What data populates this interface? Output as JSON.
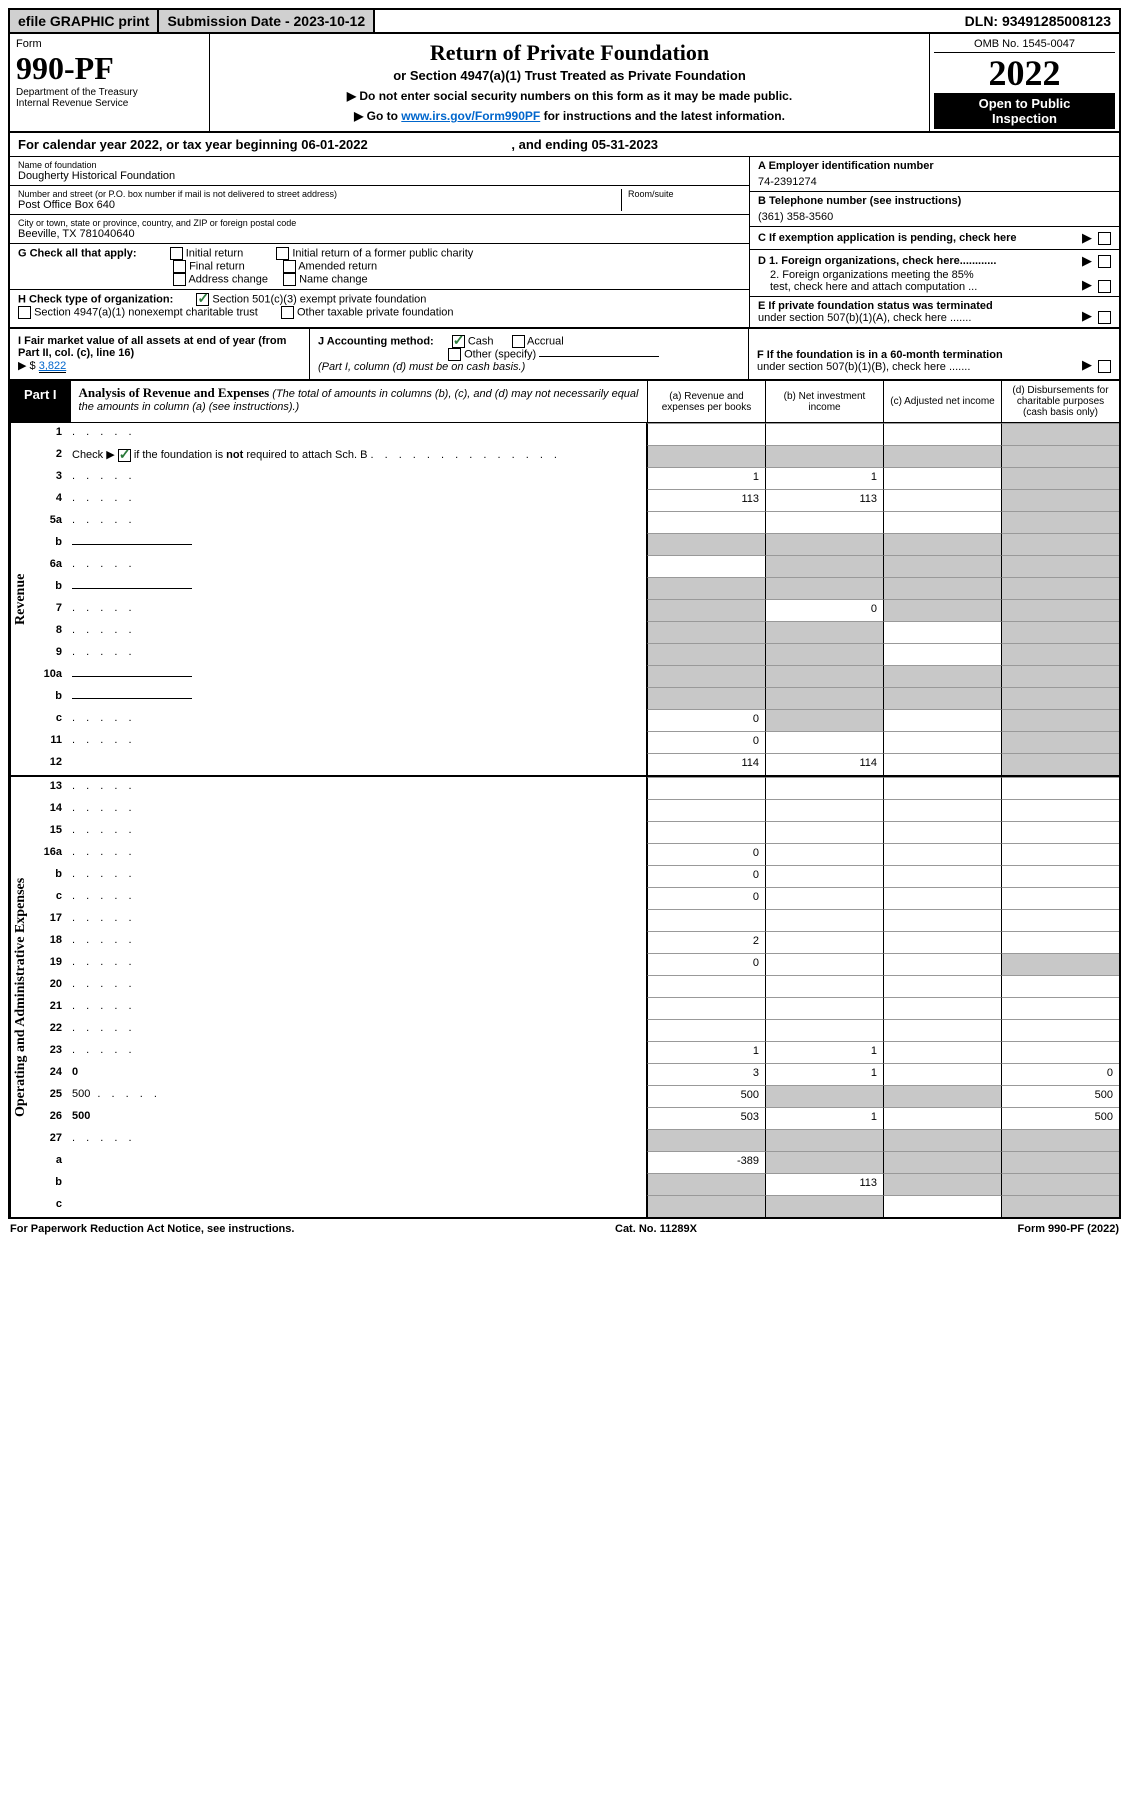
{
  "topbar": {
    "efile": "efile GRAPHIC print",
    "subdate_label": "Submission Date - ",
    "subdate": "2023-10-12",
    "dln_label": "DLN: ",
    "dln": "93491285008123"
  },
  "header": {
    "form_word": "Form",
    "form_no": "990-PF",
    "dept1": "Department of the Treasury",
    "dept2": "Internal Revenue Service",
    "title": "Return of Private Foundation",
    "subtitle": "or Section 4947(a)(1) Trust Treated as Private Foundation",
    "inst1": "▶ Do not enter social security numbers on this form as it may be made public.",
    "inst2_pre": "▶ Go to ",
    "inst2_link": "www.irs.gov/Form990PF",
    "inst2_post": " for instructions and the latest information.",
    "omb": "OMB No. 1545-0047",
    "year": "2022",
    "open1": "Open to Public",
    "open2": "Inspection"
  },
  "taxyear": {
    "text_a": "For calendar year 2022, or tax year beginning ",
    "begin": "06-01-2022",
    "text_b": " , and ending ",
    "end": "05-31-2023"
  },
  "info": {
    "name_lbl": "Name of foundation",
    "name": "Dougherty Historical Foundation",
    "addr_lbl": "Number and street (or P.O. box number if mail is not delivered to street address)",
    "addr": "Post Office Box 640",
    "room_lbl": "Room/suite",
    "city_lbl": "City or town, state or province, country, and ZIP or foreign postal code",
    "city": "Beeville, TX  781040640",
    "a_lbl": "A Employer identification number",
    "a_val": "74-2391274",
    "b_lbl": "B Telephone number (see instructions)",
    "b_val": "(361) 358-3560",
    "c_lbl": "C If exemption application is pending, check here",
    "d1": "D 1. Foreign organizations, check here............",
    "d2a": "2. Foreign organizations meeting the 85%",
    "d2b": "test, check here and attach computation ...",
    "e1": "E If private foundation status was terminated",
    "e2": "under section 507(b)(1)(A), check here .......",
    "f1": "F If the foundation is in a 60-month termination",
    "f2": "under section 507(b)(1)(B), check here .......",
    "g_lbl": "G Check all that apply:",
    "g_opts": [
      "Initial return",
      "Initial return of a former public charity",
      "Final return",
      "Amended return",
      "Address change",
      "Name change"
    ],
    "h_lbl": "H Check type of organization:",
    "h_opt1": "Section 501(c)(3) exempt private foundation",
    "h_opt2": "Section 4947(a)(1) nonexempt charitable trust",
    "h_opt3": "Other taxable private foundation",
    "i_lbl": "I Fair market value of all assets at end of year (from Part II, col. (c), line 16)",
    "i_pre": "▶ $",
    "i_val": "3,822",
    "j_lbl": "J Accounting method:",
    "j_cash": "Cash",
    "j_accr": "Accrual",
    "j_other": "Other (specify)",
    "j_note": "(Part I, column (d) must be on cash basis.)"
  },
  "part1": {
    "label": "Part I",
    "title": "Analysis of Revenue and Expenses",
    "title_note": " (The total of amounts in columns (b), (c), and (d) may not necessarily equal the amounts in column (a) (see instructions).)",
    "col_a": "(a) Revenue and expenses per books",
    "col_b": "(b) Net investment income",
    "col_c": "(c) Adjusted net income",
    "col_d": "(d) Disbursements for charitable purposes (cash basis only)"
  },
  "sections": {
    "revenue": "Revenue",
    "expenses": "Operating and Administrative Expenses"
  },
  "rows": [
    {
      "n": "1",
      "d": "",
      "a": "",
      "b": "",
      "c": "",
      "shade": [
        "d"
      ]
    },
    {
      "n": "2",
      "d": "",
      "a": "",
      "b": "",
      "c": "",
      "shade": [
        "a",
        "b",
        "c",
        "d"
      ],
      "checkrow": true
    },
    {
      "n": "3",
      "d": "",
      "a": "1",
      "b": "1",
      "c": "",
      "shade": [
        "d"
      ]
    },
    {
      "n": "4",
      "d": "",
      "a": "113",
      "b": "113",
      "c": "",
      "shade": [
        "d"
      ]
    },
    {
      "n": "5a",
      "d": "",
      "a": "",
      "b": "",
      "c": "",
      "shade": [
        "d"
      ]
    },
    {
      "n": "b",
      "d": "",
      "a": "",
      "b": "",
      "c": "",
      "shade": [
        "a",
        "b",
        "c",
        "d"
      ],
      "inline": true
    },
    {
      "n": "6a",
      "d": "",
      "a": "",
      "b": "",
      "c": "",
      "shade": [
        "b",
        "c",
        "d"
      ]
    },
    {
      "n": "b",
      "d": "",
      "a": "",
      "b": "",
      "c": "",
      "shade": [
        "a",
        "b",
        "c",
        "d"
      ],
      "inline": true
    },
    {
      "n": "7",
      "d": "",
      "a": "",
      "b": "0",
      "c": "",
      "shade": [
        "a",
        "c",
        "d"
      ]
    },
    {
      "n": "8",
      "d": "",
      "a": "",
      "b": "",
      "c": "",
      "shade": [
        "a",
        "b",
        "d"
      ]
    },
    {
      "n": "9",
      "d": "",
      "a": "",
      "b": "",
      "c": "",
      "shade": [
        "a",
        "b",
        "d"
      ]
    },
    {
      "n": "10a",
      "d": "",
      "a": "",
      "b": "",
      "c": "",
      "shade": [
        "a",
        "b",
        "c",
        "d"
      ],
      "inline": true
    },
    {
      "n": "b",
      "d": "",
      "a": "",
      "b": "",
      "c": "",
      "shade": [
        "a",
        "b",
        "c",
        "d"
      ],
      "inline": true
    },
    {
      "n": "c",
      "d": "",
      "a": "0",
      "b": "",
      "c": "",
      "shade": [
        "b",
        "d"
      ]
    },
    {
      "n": "11",
      "d": "",
      "a": "0",
      "b": "",
      "c": "",
      "shade": [
        "d"
      ]
    },
    {
      "n": "12",
      "d": "",
      "a": "114",
      "b": "114",
      "c": "",
      "shade": [
        "d"
      ],
      "bold": true
    }
  ],
  "rows_exp": [
    {
      "n": "13",
      "d": "",
      "a": "",
      "b": "",
      "c": ""
    },
    {
      "n": "14",
      "d": "",
      "a": "",
      "b": "",
      "c": ""
    },
    {
      "n": "15",
      "d": "",
      "a": "",
      "b": "",
      "c": ""
    },
    {
      "n": "16a",
      "d": "",
      "a": "0",
      "b": "",
      "c": ""
    },
    {
      "n": "b",
      "d": "",
      "a": "0",
      "b": "",
      "c": ""
    },
    {
      "n": "c",
      "d": "",
      "a": "0",
      "b": "",
      "c": ""
    },
    {
      "n": "17",
      "d": "",
      "a": "",
      "b": "",
      "c": ""
    },
    {
      "n": "18",
      "d": "",
      "a": "2",
      "b": "",
      "c": ""
    },
    {
      "n": "19",
      "d": "",
      "a": "0",
      "b": "",
      "c": "",
      "shade": [
        "d"
      ]
    },
    {
      "n": "20",
      "d": "",
      "a": "",
      "b": "",
      "c": ""
    },
    {
      "n": "21",
      "d": "",
      "a": "",
      "b": "",
      "c": ""
    },
    {
      "n": "22",
      "d": "",
      "a": "",
      "b": "",
      "c": ""
    },
    {
      "n": "23",
      "d": "",
      "a": "1",
      "b": "1",
      "c": ""
    },
    {
      "n": "24",
      "d": "0",
      "a": "3",
      "b": "1",
      "c": "",
      "bold": true
    },
    {
      "n": "25",
      "d": "500",
      "a": "500",
      "b": "",
      "c": "",
      "shade": [
        "b",
        "c"
      ]
    },
    {
      "n": "26",
      "d": "500",
      "a": "503",
      "b": "1",
      "c": "",
      "bold": true
    },
    {
      "n": "27",
      "d": "",
      "a": "",
      "b": "",
      "c": "",
      "shade": [
        "a",
        "b",
        "c",
        "d"
      ]
    },
    {
      "n": "a",
      "d": "",
      "a": "-389",
      "b": "",
      "c": "",
      "shade": [
        "b",
        "c",
        "d"
      ],
      "bold": true
    },
    {
      "n": "b",
      "d": "",
      "a": "",
      "b": "113",
      "c": "",
      "shade": [
        "a",
        "c",
        "d"
      ],
      "bold": true
    },
    {
      "n": "c",
      "d": "",
      "a": "",
      "b": "",
      "c": "",
      "shade": [
        "a",
        "b",
        "d"
      ],
      "bold": true
    }
  ],
  "footer": {
    "left": "For Paperwork Reduction Act Notice, see instructions.",
    "mid": "Cat. No. 11289X",
    "right": "Form 990-PF (2022)"
  }
}
